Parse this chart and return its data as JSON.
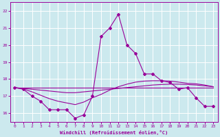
{
  "xlabel": "Windchill (Refroidissement éolien,°C)",
  "xlim": [
    -0.5,
    23.5
  ],
  "ylim": [
    15.5,
    22.5
  ],
  "yticks": [
    16,
    17,
    18,
    19,
    20,
    21,
    22
  ],
  "xticks": [
    0,
    1,
    2,
    3,
    4,
    5,
    6,
    7,
    8,
    9,
    10,
    11,
    12,
    13,
    14,
    15,
    16,
    17,
    18,
    19,
    20,
    21,
    22,
    23
  ],
  "bg_color": "#cce9ee",
  "grid_color": "#ffffff",
  "line_color": "#990099",
  "line1_x": [
    0,
    1,
    2,
    3,
    4,
    5,
    6,
    7,
    8,
    9,
    10,
    11,
    12,
    13,
    14,
    15,
    16,
    17,
    18,
    19,
    20,
    21,
    22,
    23
  ],
  "line1_y": [
    17.5,
    17.4,
    17.0,
    16.7,
    16.2,
    16.2,
    16.2,
    15.7,
    15.9,
    17.0,
    20.5,
    21.0,
    21.8,
    20.0,
    19.5,
    18.3,
    18.3,
    17.9,
    17.8,
    17.4,
    17.5,
    16.9,
    16.4,
    16.4
  ],
  "line2_x": [
    0,
    23
  ],
  "line2_y": [
    17.5,
    17.5
  ],
  "line3_x": [
    0,
    1,
    2,
    3,
    4,
    5,
    6,
    7,
    8,
    9,
    10,
    11,
    12,
    13,
    14,
    15,
    16,
    17,
    18,
    19,
    20,
    21,
    22,
    23
  ],
  "line3_y": [
    17.5,
    17.45,
    17.4,
    17.35,
    17.3,
    17.25,
    17.2,
    17.2,
    17.25,
    17.3,
    17.35,
    17.4,
    17.45,
    17.5,
    17.55,
    17.6,
    17.65,
    17.68,
    17.7,
    17.7,
    17.68,
    17.65,
    17.6,
    17.55
  ],
  "line4_x": [
    0,
    1,
    2,
    3,
    4,
    5,
    6,
    7,
    8,
    9,
    10,
    11,
    12,
    13,
    14,
    15,
    16,
    17,
    18,
    19,
    20,
    21,
    22,
    23
  ],
  "line4_y": [
    17.5,
    17.42,
    17.25,
    17.05,
    16.85,
    16.7,
    16.6,
    16.5,
    16.65,
    16.9,
    17.1,
    17.35,
    17.55,
    17.7,
    17.82,
    17.88,
    17.9,
    17.9,
    17.88,
    17.82,
    17.75,
    17.72,
    17.65,
    17.55
  ]
}
